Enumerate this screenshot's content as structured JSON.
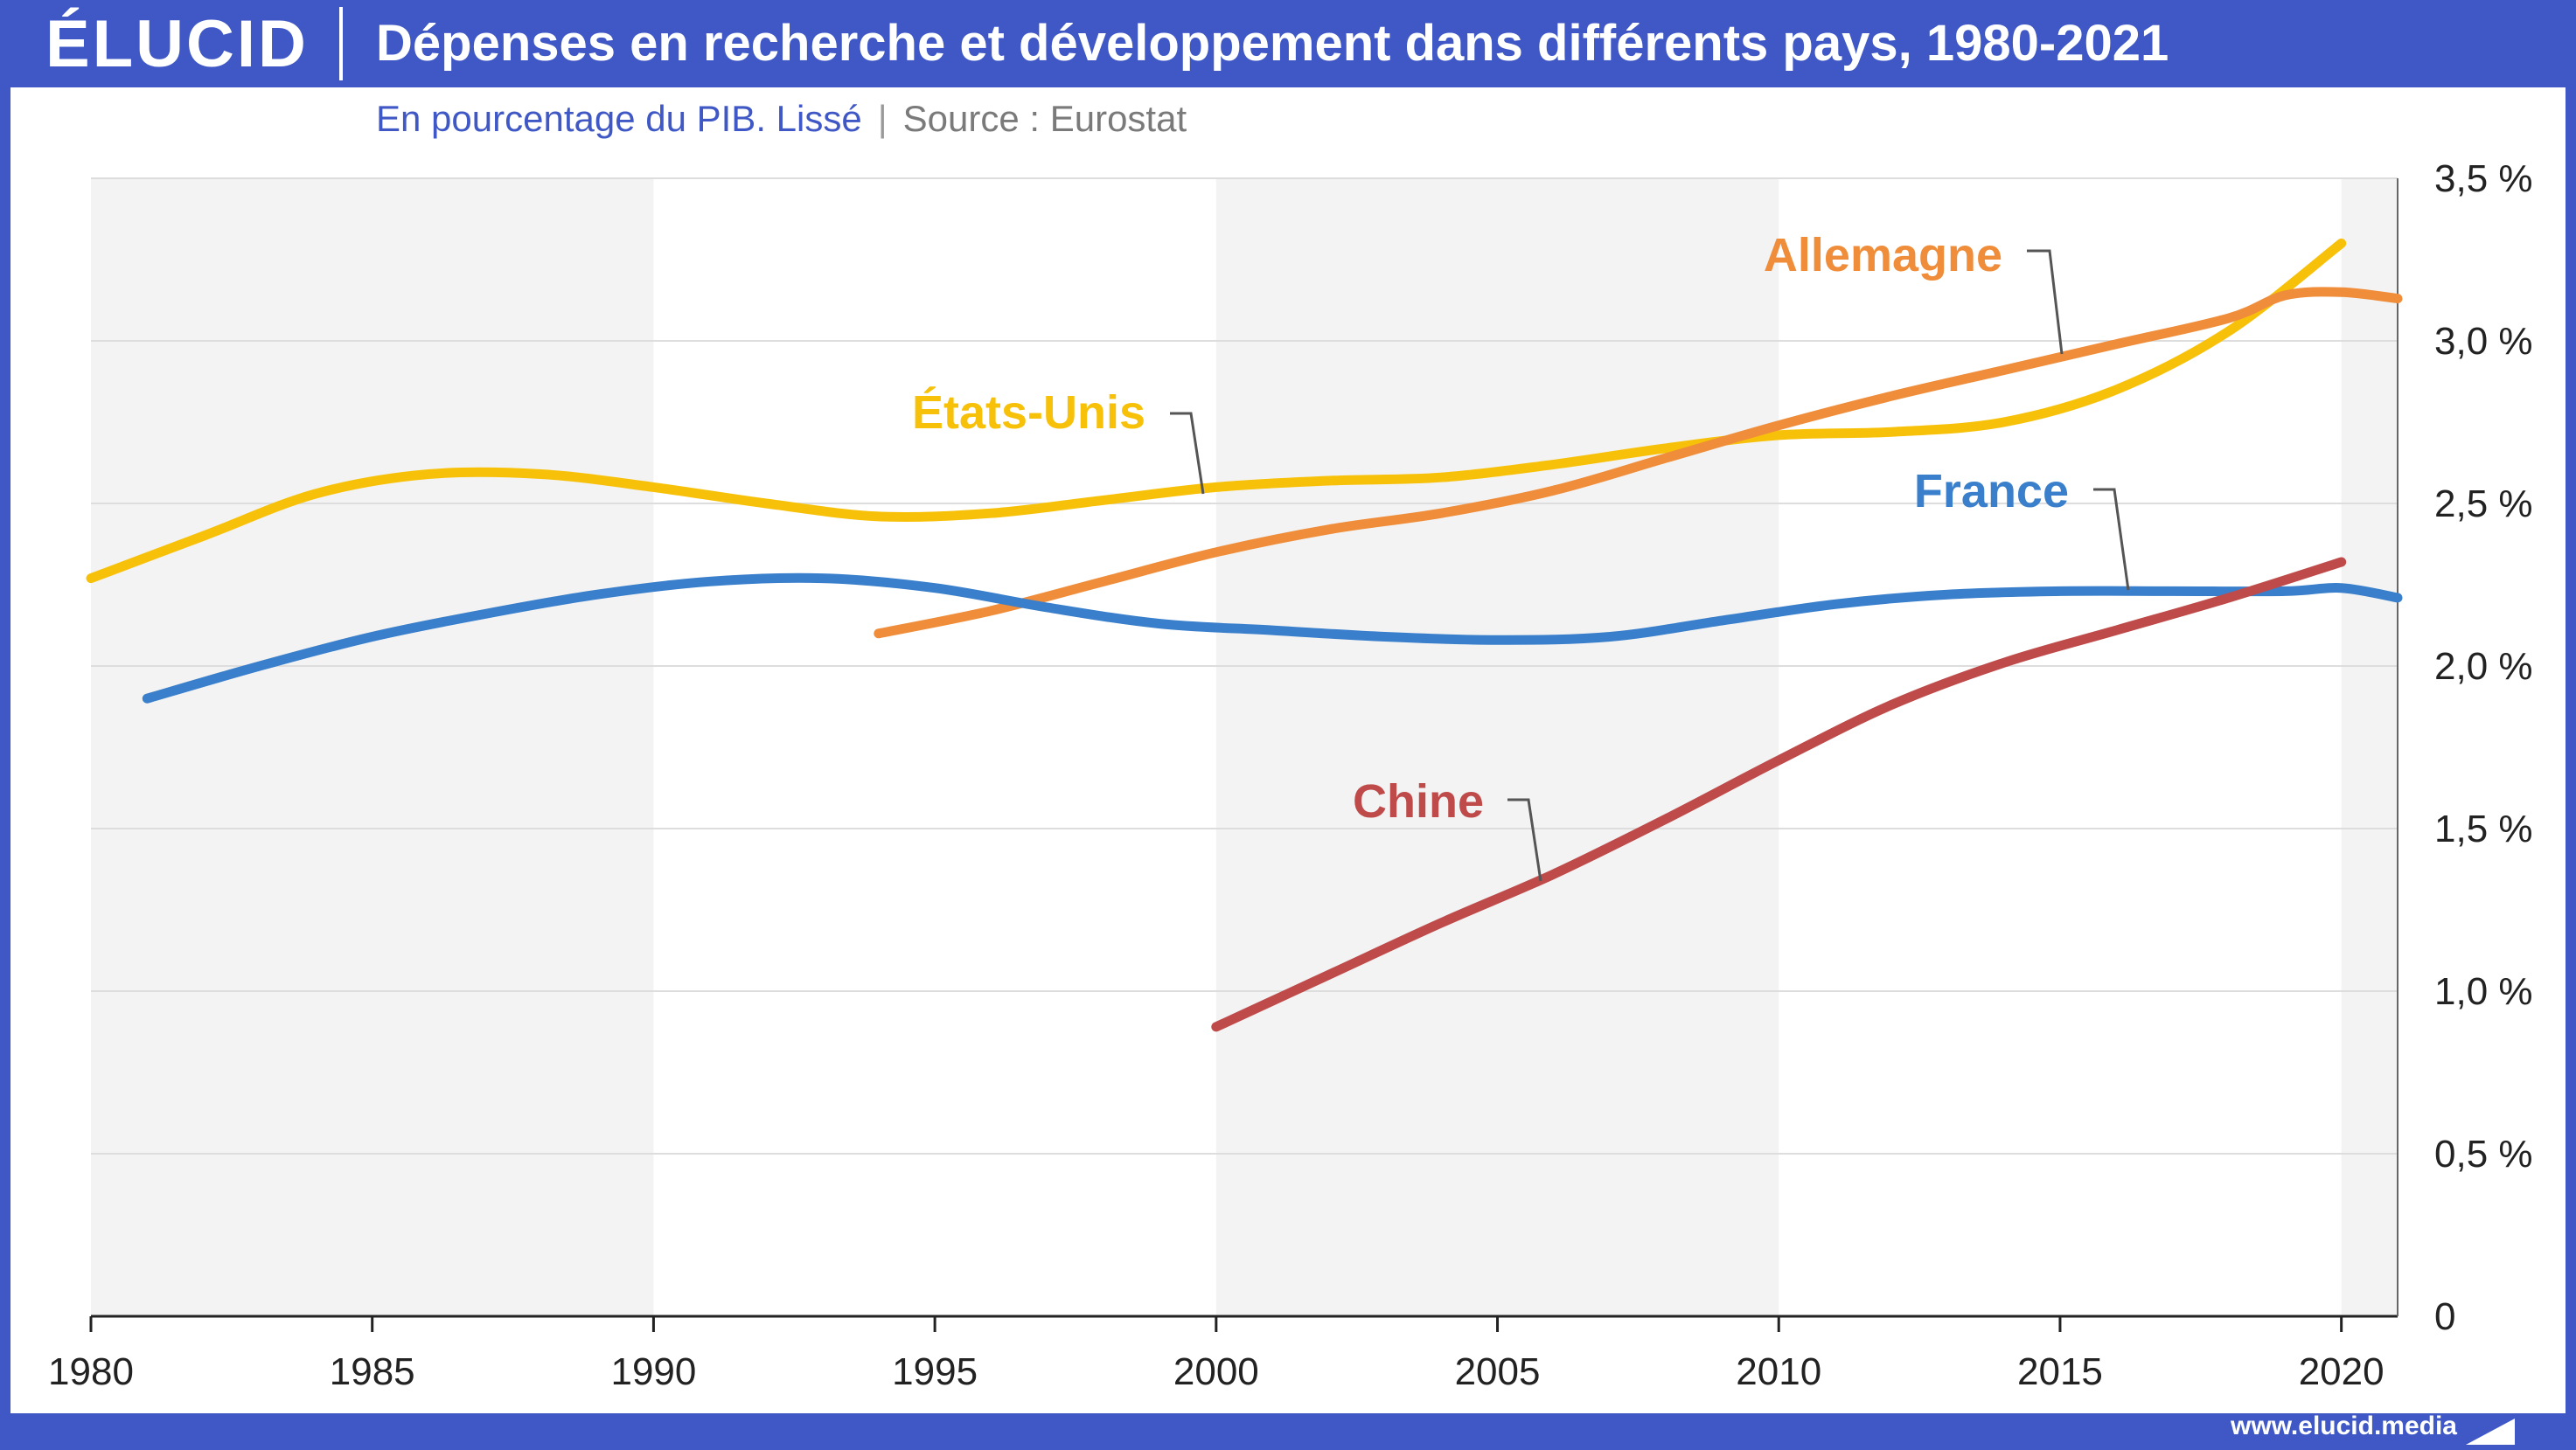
{
  "header": {
    "logo": "ÉLUCID",
    "title": "Dépenses en recherche et développement dans différents pays, 1980-2021",
    "subtitle": "En pourcentage du PIB. Lissé",
    "separator": "|",
    "source": "Source : Eurostat"
  },
  "footer": {
    "url": "www.elucid.media"
  },
  "colors": {
    "brand": "#3f58c6",
    "france": "#3a7fcb",
    "etats_unis": "#f7c10a",
    "allemagne": "#ef8d3a",
    "chine": "#bf4a4a"
  },
  "chart_data": {
    "type": "line",
    "ylim": [
      0,
      3.5
    ],
    "xlim": [
      1980,
      2021
    ],
    "x_ticks": [
      1980,
      1985,
      1990,
      1995,
      2000,
      2005,
      2010,
      2015,
      2020
    ],
    "x_tick_labels": [
      "1980",
      "1985",
      "1990",
      "1995",
      "2000",
      "2005",
      "2010",
      "2015",
      "2020"
    ],
    "y_ticks": [
      0,
      0.5,
      1.0,
      1.5,
      2.0,
      2.5,
      3.0,
      3.5
    ],
    "y_tick_labels": [
      "0",
      "0,5 %",
      "1,0 %",
      "1,5 %",
      "2,0 %",
      "2,5 %",
      "3,0 %",
      "3,5 %"
    ],
    "grid": true,
    "series": [
      {
        "name": "États-Unis",
        "color": "#f7c10a",
        "x": [
          1980,
          1982,
          1984,
          1986,
          1988,
          1990,
          1992,
          1994,
          1996,
          1998,
          2000,
          2002,
          2004,
          2006,
          2008,
          2010,
          2012,
          2014,
          2016,
          2018,
          2020
        ],
        "y": [
          2.27,
          2.4,
          2.53,
          2.59,
          2.59,
          2.55,
          2.5,
          2.46,
          2.47,
          2.51,
          2.55,
          2.57,
          2.58,
          2.62,
          2.67,
          2.71,
          2.72,
          2.75,
          2.85,
          3.03,
          3.3
        ]
      },
      {
        "name": "Allemagne",
        "color": "#ef8d3a",
        "x": [
          1994,
          1996,
          1998,
          2000,
          2002,
          2004,
          2006,
          2008,
          2010,
          2012,
          2014,
          2016,
          2018,
          2019,
          2020,
          2021
        ],
        "y": [
          2.1,
          2.17,
          2.26,
          2.35,
          2.42,
          2.47,
          2.54,
          2.64,
          2.74,
          2.83,
          2.91,
          2.99,
          3.07,
          3.14,
          3.15,
          3.13
        ]
      },
      {
        "name": "France",
        "color": "#3a7fcb",
        "x": [
          1981,
          1983,
          1985,
          1987,
          1989,
          1991,
          1993,
          1995,
          1997,
          1999,
          2001,
          2003,
          2005,
          2007,
          2009,
          2011,
          2013,
          2015,
          2017,
          2019,
          2020,
          2021
        ],
        "y": [
          1.9,
          2.0,
          2.09,
          2.16,
          2.22,
          2.26,
          2.27,
          2.24,
          2.18,
          2.13,
          2.11,
          2.09,
          2.08,
          2.09,
          2.14,
          2.19,
          2.22,
          2.23,
          2.23,
          2.23,
          2.24,
          2.21
        ]
      },
      {
        "name": "Chine",
        "color": "#bf4a4a",
        "x": [
          2000,
          2002,
          2004,
          2006,
          2008,
          2010,
          2012,
          2014,
          2016,
          2018,
          2020
        ],
        "y": [
          0.89,
          1.05,
          1.21,
          1.36,
          1.53,
          1.71,
          1.88,
          2.01,
          2.11,
          2.21,
          2.32
        ]
      }
    ],
    "labels": [
      {
        "text": "Allemagne",
        "color": "#ef8d3a"
      },
      {
        "text": "États-Unis",
        "color": "#f7c10a"
      },
      {
        "text": "France",
        "color": "#3a7fcb"
      },
      {
        "text": "Chine",
        "color": "#bf4a4a"
      }
    ]
  }
}
